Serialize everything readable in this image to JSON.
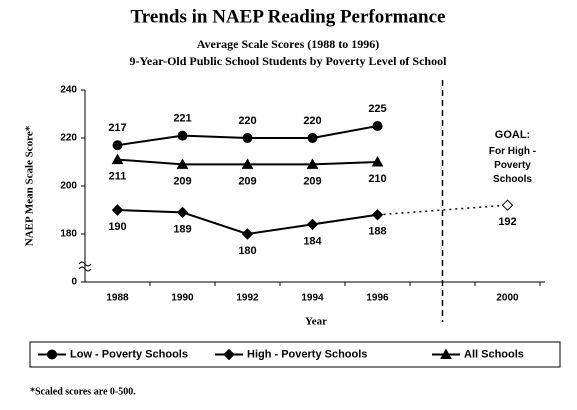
{
  "chart_data": {
    "type": "line",
    "title": "Trends in NAEP Reading Performance",
    "subtitle": "Average Scale Scores (1988 to 1996)",
    "subtitle2": "9-Year-Old Public School Students by Poverty Level of School",
    "x_label": "Year",
    "y_label": "NAEP Mean Scale Score*",
    "categories": [
      "1988",
      "1990",
      "1992",
      "1994",
      "1996",
      null,
      "2000"
    ],
    "ylim": [
      0,
      240
    ],
    "yticks": [
      0,
      180,
      200,
      220,
      240
    ],
    "axis_break": true,
    "series": [
      {
        "name": "Low - Poverty Schools",
        "color": "#000000",
        "marker": "circle",
        "label_position": "above",
        "values": [
          217,
          221,
          220,
          220,
          225,
          null,
          null
        ]
      },
      {
        "name": "High - Poverty Schools",
        "color": "#000000",
        "marker": "diamond",
        "label_position": "below",
        "values": [
          190,
          189,
          180,
          184,
          188,
          null,
          null
        ]
      },
      {
        "name": "All Schools",
        "color": "#000000",
        "marker": "triangle",
        "label_position": "below",
        "values": [
          211,
          209,
          209,
          209,
          210,
          null,
          null
        ]
      }
    ],
    "goal": {
      "lines": [
        "GOAL:",
        "For High -",
        "Poverty",
        "Schools"
      ],
      "values": [
        null,
        null,
        null,
        null,
        null,
        null,
        192
      ]
    },
    "footnote": "*Scaled scores are 0-500."
  }
}
